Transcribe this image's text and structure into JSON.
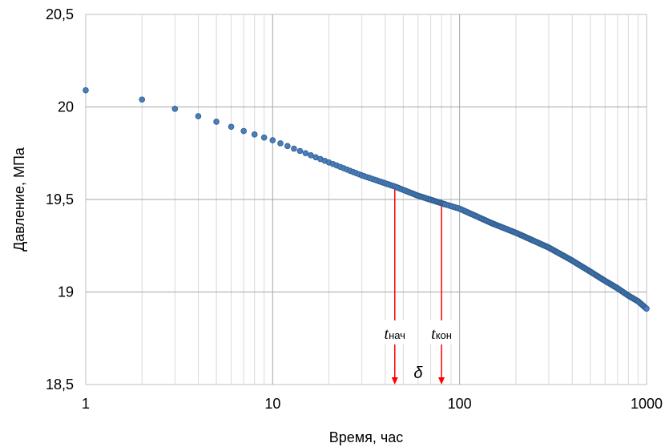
{
  "chart_data": {
    "type": "scatter",
    "xlabel": "Время, час",
    "ylabel": "Давление, МПа",
    "x_scale": "log",
    "xlim": [
      1,
      1000
    ],
    "ylim": [
      18.5,
      20.5
    ],
    "x_tick_labels": [
      "1",
      "10",
      "100",
      "1000"
    ],
    "y_tick_labels": [
      "18,5",
      "19",
      "19,5",
      "20",
      "20,5"
    ],
    "grid": true,
    "marker_color": "#4A7EBB",
    "marker_edge_color": "#2E5B8C",
    "annotation_color": "#FF0000",
    "series": [
      {
        "x": [
          1,
          1.5,
          2,
          3,
          4,
          5,
          7,
          10,
          15,
          20,
          30,
          45,
          60,
          80,
          100,
          150,
          200,
          300,
          400,
          500,
          600,
          700,
          800,
          900,
          1000
        ],
        "y": [
          20.09,
          20.06,
          20.04,
          19.99,
          19.95,
          19.92,
          19.87,
          19.82,
          19.75,
          19.7,
          19.63,
          19.57,
          19.52,
          19.48,
          19.45,
          19.37,
          19.32,
          19.24,
          19.17,
          19.11,
          19.06,
          19.02,
          18.98,
          18.95,
          18.91
        ]
      }
    ],
    "annotations": {
      "t_start": {
        "x": 45,
        "y": 19.57,
        "label_main": "t",
        "label_sub": "нач"
      },
      "t_end": {
        "x": 80,
        "y": 19.48,
        "label_main": "t",
        "label_sub": "кон"
      },
      "delta": {
        "label": "δ"
      }
    }
  }
}
